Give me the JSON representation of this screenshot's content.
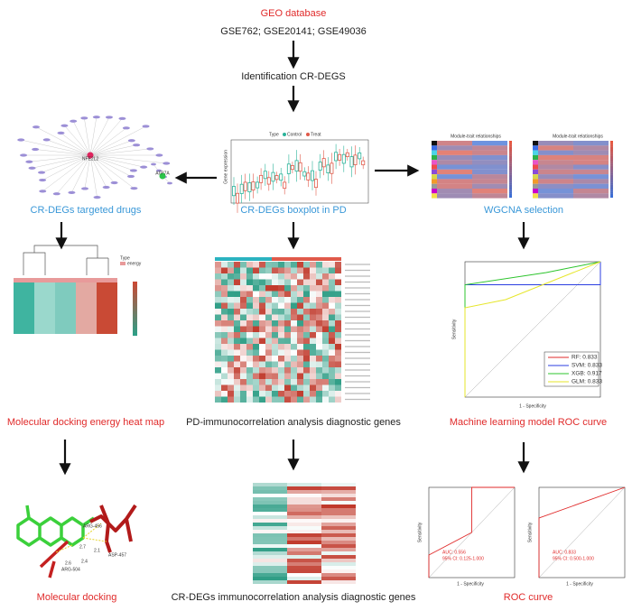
{
  "header": {
    "source": "GEO database",
    "datasets": "GSE762; GSE20141; GSE49036",
    "step": "Identification CR-DEGS"
  },
  "panels": [
    {
      "caption": "CR-DEGs targeted drugs",
      "nodes": [
        "NFE2L2",
        "ATP7A"
      ]
    },
    {
      "caption": "CR-DEGs boxplot in PD",
      "legend_title": "Type",
      "legend": [
        "Control",
        "Treat"
      ],
      "y_label": "Gene expression"
    },
    {
      "caption": "WGCNA selection",
      "titles": [
        "Module-trait relationships",
        "Module-trait relationships"
      ]
    },
    {
      "caption": "Molecular docking energy heat map",
      "legend_title": "Type",
      "legend": [
        "energy"
      ]
    },
    {
      "caption": "PD-immunocorrelation analysis diagnostic genes"
    },
    {
      "caption": "Machine learning model ROC curve",
      "legend": [
        "RF: 0.833",
        "SVM: 0.833",
        "XGB: 0.917",
        "GLM: 0.833"
      ],
      "x_label": "1 - Specificity",
      "y_label": "Sensitivity"
    },
    {
      "caption": "Molecular docking",
      "labels": [
        "ARG-456",
        "ASP-457",
        "ARG-504",
        "2.7",
        "2.1",
        "2.4",
        "2.6"
      ]
    },
    {
      "caption": "CR-DEGs immunocorrelation analysis diagnostic genes"
    },
    {
      "caption": "ROC curve",
      "auc": [
        "AUC: 0.556",
        "AUC: 0.833"
      ],
      "ci": [
        "95% CI: 0.125-1.000",
        "95% CI: 0.500-1.000"
      ],
      "x_label": "1 - Specificity",
      "y_label": "Sensitivity"
    }
  ]
}
